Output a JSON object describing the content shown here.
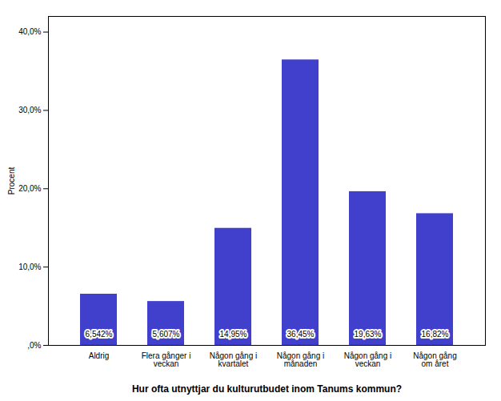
{
  "chart_data": {
    "type": "bar",
    "categories": [
      "Aldrig",
      "Flera gånger i\nveckan",
      "Någon gång i\nkvartalet",
      "Någon gång i\nmånaden",
      "Någon gång i\nveckan",
      "Någon gång\nom året"
    ],
    "values": [
      6.542,
      5.607,
      14.95,
      36.45,
      19.63,
      16.82
    ],
    "value_labels": [
      "6,542%",
      "5,607%",
      "14,95%",
      "36,45%",
      "19,63%",
      "16,82%"
    ],
    "data_labels": true,
    "color": "#4040cc",
    "xlabel": "Hur ofta utnyttjar du kulturutbudet inom Tanums kommun?",
    "ylabel": "Procent",
    "ylim": [
      0,
      42
    ],
    "yticks": [
      {
        "value": 0,
        "label": ",0%"
      },
      {
        "value": 10,
        "label": "10,0%"
      },
      {
        "value": 20,
        "label": "20,0%"
      },
      {
        "value": 30,
        "label": "30,0%"
      },
      {
        "value": 40,
        "label": "40,0%"
      }
    ],
    "grid": false
  }
}
